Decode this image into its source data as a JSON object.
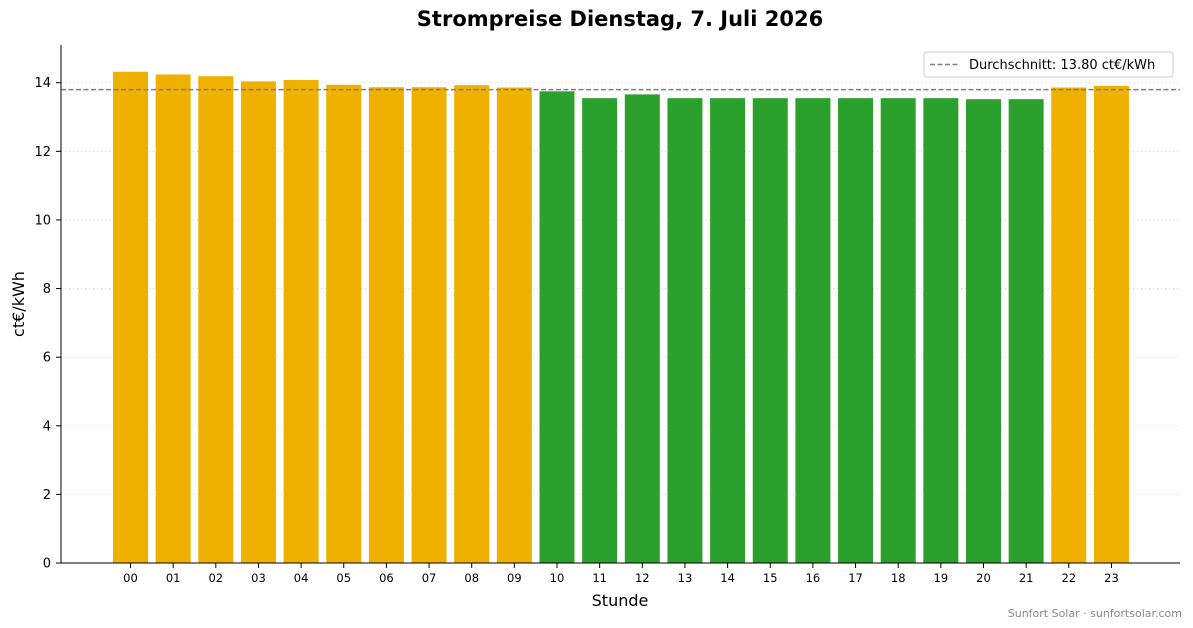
{
  "chart_data": {
    "type": "bar",
    "title": "Strompreise Dienstag, 7. Juli 2026",
    "xlabel": "Stunde",
    "ylabel": "ct€/kWh",
    "ylim": [
      0,
      15.1
    ],
    "yticks": [
      0,
      2,
      4,
      6,
      8,
      10,
      12,
      14
    ],
    "categories": [
      "00",
      "01",
      "02",
      "03",
      "04",
      "05",
      "06",
      "07",
      "08",
      "09",
      "10",
      "11",
      "12",
      "13",
      "14",
      "15",
      "16",
      "17",
      "18",
      "19",
      "20",
      "21",
      "22",
      "23"
    ],
    "values": [
      14.32,
      14.24,
      14.19,
      14.04,
      14.08,
      13.94,
      13.87,
      13.87,
      13.93,
      13.86,
      13.75,
      13.55,
      13.66,
      13.55,
      13.55,
      13.55,
      13.55,
      13.55,
      13.55,
      13.55,
      13.52,
      13.52,
      13.86,
      13.91
    ],
    "bar_colors": [
      "#f0b000",
      "#f0b000",
      "#f0b000",
      "#f0b000",
      "#f0b000",
      "#f0b000",
      "#f0b000",
      "#f0b000",
      "#f0b000",
      "#f0b000",
      "#2ca02c",
      "#2ca02c",
      "#2ca02c",
      "#2ca02c",
      "#2ca02c",
      "#2ca02c",
      "#2ca02c",
      "#2ca02c",
      "#2ca02c",
      "#2ca02c",
      "#2ca02c",
      "#2ca02c",
      "#f0b000",
      "#f0b000"
    ],
    "average": {
      "value": 13.8,
      "label": "Durchschnitt: 13.80 ct€/kWh",
      "color": "#808080",
      "style": "dashed"
    },
    "grid": "y-dotted",
    "legend_position": "top-right"
  },
  "footer": "Sunfort Solar · sunfortsolar.com"
}
